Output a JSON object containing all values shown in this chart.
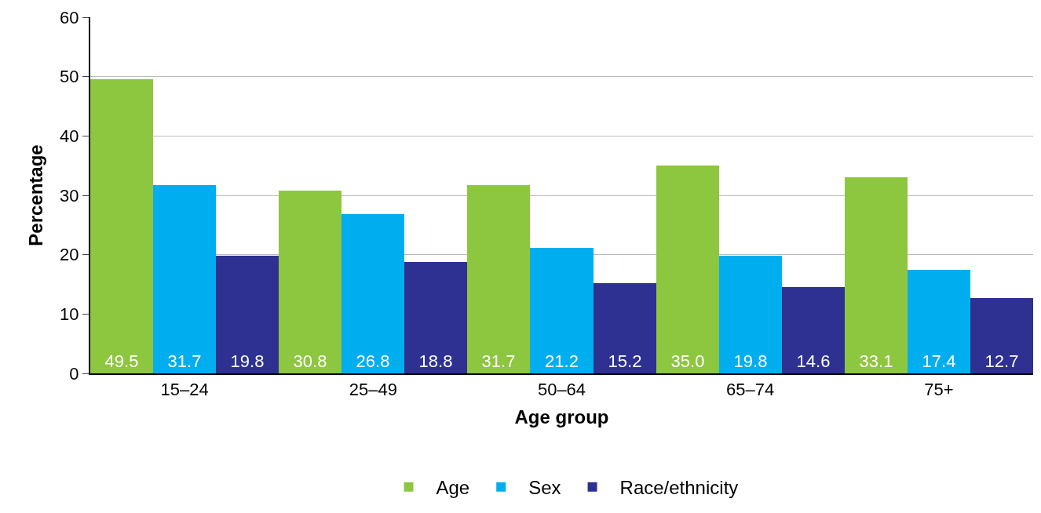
{
  "chart_data": {
    "type": "bar",
    "xlabel": "Age group",
    "ylabel": "Percentage",
    "categories": [
      "15–24",
      "25–49",
      "50–64",
      "65–74",
      "75+"
    ],
    "series": [
      {
        "name": "Age",
        "color": "#8dc63f",
        "values": [
          49.5,
          30.8,
          31.7,
          35.0,
          33.1
        ],
        "value_labels": [
          "49.5",
          "30.8",
          "31.7",
          "35.0",
          "33.1"
        ]
      },
      {
        "name": "Sex",
        "color": "#00aeef",
        "values": [
          31.7,
          26.8,
          21.2,
          19.8,
          17.4
        ],
        "value_labels": [
          "31.7",
          "26.8",
          "21.2",
          "19.8",
          "17.4"
        ]
      },
      {
        "name": "Race/ethnicity",
        "color": "#2e3192",
        "values": [
          19.8,
          18.8,
          15.2,
          14.6,
          12.7
        ],
        "value_labels": [
          "19.8",
          "18.8",
          "15.2",
          "14.6",
          "12.7"
        ]
      }
    ],
    "ylim": [
      0,
      60
    ],
    "yticks": [
      0,
      10,
      20,
      30,
      40,
      50,
      60
    ],
    "grid": "y",
    "legend": "bottom"
  }
}
